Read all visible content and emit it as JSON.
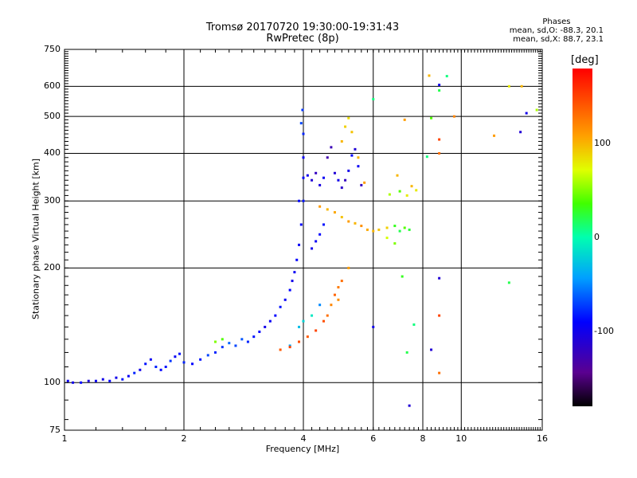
{
  "chart_data": {
    "type": "scatter",
    "title": "Tromsø 20170720 19:30:00-19:31:43",
    "subtitle": "RwPretec (8p)",
    "xlabel": "Frequency [MHz]",
    "ylabel": "Stationary phase Virtual Height [km]",
    "x_scale": "log",
    "y_scale": "log",
    "xlim": [
      1,
      16
    ],
    "ylim": [
      75,
      750
    ],
    "x_ticks": [
      "1",
      "2",
      "4",
      "6",
      "8",
      "10",
      "16"
    ],
    "x_tick_values": [
      1,
      2,
      4,
      6,
      8,
      10,
      16
    ],
    "y_ticks": [
      "75",
      "100",
      "200",
      "300",
      "400",
      "500",
      "600",
      "750"
    ],
    "y_tick_values": [
      75,
      100,
      200,
      300,
      400,
      500,
      600,
      750
    ],
    "grid": true,
    "phase_info": {
      "header": "Phases",
      "line_o": "mean, sd,O: -88.3, 20.1",
      "line_x": "mean, sd,X: 88.7, 23.1"
    },
    "colorbar": {
      "label": "[deg]",
      "range": [
        -180,
        180
      ],
      "ticks": [
        "100",
        "0",
        "-100"
      ],
      "tick_values": [
        100,
        0,
        -100
      ]
    },
    "series": [
      {
        "points": [
          [
            1.02,
            101,
            -95
          ],
          [
            1.05,
            100,
            -100
          ],
          [
            1.1,
            100,
            -90
          ],
          [
            1.15,
            101,
            -105
          ],
          [
            1.2,
            101,
            -95
          ],
          [
            1.25,
            102,
            -100
          ],
          [
            1.3,
            101,
            -90
          ],
          [
            1.35,
            103,
            -100
          ],
          [
            1.4,
            102,
            -85
          ],
          [
            1.45,
            104,
            -95
          ],
          [
            1.5,
            106,
            -80
          ],
          [
            1.55,
            108,
            -100
          ],
          [
            1.6,
            112,
            -85
          ],
          [
            1.65,
            115,
            -95
          ],
          [
            1.7,
            110,
            -80
          ],
          [
            1.75,
            108,
            -90
          ],
          [
            1.8,
            110,
            -85
          ],
          [
            1.85,
            114,
            -75
          ],
          [
            1.9,
            117,
            -95
          ],
          [
            1.95,
            119,
            -85
          ],
          [
            2.0,
            113,
            -80
          ],
          [
            2.1,
            112,
            -90
          ],
          [
            2.2,
            115,
            -85
          ],
          [
            2.3,
            118,
            -70
          ],
          [
            2.4,
            120,
            -80
          ],
          [
            2.5,
            124,
            -75
          ],
          [
            2.6,
            127,
            -60
          ],
          [
            2.7,
            125,
            -70
          ],
          [
            2.8,
            130,
            -65
          ],
          [
            2.9,
            128,
            -80
          ],
          [
            3.0,
            132,
            -85
          ],
          [
            3.1,
            136,
            -90
          ],
          [
            3.2,
            140,
            -100
          ],
          [
            3.3,
            145,
            -95
          ],
          [
            3.4,
            150,
            -90
          ],
          [
            3.5,
            158,
            -85
          ],
          [
            3.6,
            165,
            -95
          ],
          [
            3.7,
            175,
            -90
          ],
          [
            3.75,
            185,
            -100
          ],
          [
            3.8,
            195,
            -95
          ],
          [
            3.85,
            210,
            -90
          ],
          [
            3.9,
            230,
            -95
          ],
          [
            3.95,
            260,
            -90
          ],
          [
            4.0,
            300,
            -85
          ],
          [
            4.0,
            345,
            -90
          ],
          [
            4.0,
            390,
            -95
          ],
          [
            4.0,
            450,
            -80
          ],
          [
            3.98,
            520,
            -75
          ],
          [
            3.95,
            480,
            -70
          ],
          [
            3.9,
            300,
            -90
          ],
          [
            4.1,
            350,
            -100
          ],
          [
            4.2,
            340,
            -110
          ],
          [
            4.3,
            355,
            -120
          ],
          [
            4.4,
            330,
            -105
          ],
          [
            4.5,
            345,
            -95
          ],
          [
            4.6,
            390,
            -130
          ],
          [
            4.7,
            415,
            -125
          ],
          [
            4.8,
            355,
            -110
          ],
          [
            4.9,
            340,
            -100
          ],
          [
            5.0,
            325,
            -115
          ],
          [
            5.1,
            340,
            -120
          ],
          [
            5.2,
            360,
            -100
          ],
          [
            5.3,
            395,
            -90
          ],
          [
            5.4,
            410,
            -110
          ],
          [
            5.5,
            370,
            -95
          ],
          [
            5.6,
            330,
            -120
          ],
          [
            4.2,
            225,
            -100
          ],
          [
            4.3,
            235,
            -95
          ],
          [
            4.4,
            245,
            -90
          ],
          [
            4.5,
            260,
            -85
          ],
          [
            3.9,
            140,
            -30
          ],
          [
            4.0,
            145,
            -20
          ],
          [
            4.2,
            150,
            -10
          ],
          [
            4.4,
            160,
            -50
          ],
          [
            3.7,
            125,
            -40
          ]
        ]
      },
      {
        "points": [
          [
            2.4,
            128,
            50
          ],
          [
            2.5,
            130,
            40
          ],
          [
            3.5,
            122,
            140
          ],
          [
            3.7,
            124,
            150
          ],
          [
            3.9,
            128,
            145
          ],
          [
            4.1,
            132,
            140
          ],
          [
            4.3,
            137,
            150
          ],
          [
            4.5,
            145,
            145
          ],
          [
            4.6,
            150,
            130
          ],
          [
            4.7,
            160,
            120
          ],
          [
            4.8,
            170,
            135
          ],
          [
            4.9,
            178,
            125
          ],
          [
            5.0,
            185,
            130
          ],
          [
            4.4,
            290,
            110
          ],
          [
            4.6,
            285,
            100
          ],
          [
            4.8,
            280,
            105
          ],
          [
            5.0,
            272,
            95
          ],
          [
            5.2,
            265,
            110
          ],
          [
            5.4,
            262,
            100
          ],
          [
            5.6,
            258,
            115
          ],
          [
            5.8,
            252,
            105
          ],
          [
            6.0,
            250,
            100
          ],
          [
            6.2,
            252,
            95
          ],
          [
            6.5,
            255,
            90
          ],
          [
            6.8,
            258,
            30
          ],
          [
            7.0,
            250,
            20
          ],
          [
            7.2,
            255,
            40
          ],
          [
            7.4,
            252,
            25
          ],
          [
            6.6,
            312,
            60
          ],
          [
            7.0,
            318,
            40
          ],
          [
            5.0,
            430,
            100
          ],
          [
            5.1,
            470,
            90
          ],
          [
            5.2,
            495,
            85
          ],
          [
            5.3,
            455,
            95
          ],
          [
            5.5,
            390,
            100
          ],
          [
            5.7,
            335,
            110
          ],
          [
            6.9,
            350,
            100
          ],
          [
            7.3,
            310,
            80
          ],
          [
            6.5,
            240,
            70
          ],
          [
            6.8,
            232,
            50
          ],
          [
            5.2,
            200,
            110
          ],
          [
            4.9,
            165,
            115
          ]
        ]
      },
      {
        "points": [
          [
            8.3,
            640,
            100
          ],
          [
            8.8,
            605,
            -100
          ],
          [
            8.8,
            585,
            20
          ],
          [
            9.6,
            500,
            120
          ],
          [
            8.4,
            495,
            40
          ],
          [
            8.8,
            435,
            150
          ],
          [
            8.8,
            400,
            130
          ],
          [
            7.2,
            490,
            110
          ],
          [
            7.5,
            328,
            100
          ],
          [
            7.7,
            320,
            80
          ],
          [
            8.2,
            392,
            10
          ],
          [
            13.2,
            600,
            80
          ],
          [
            14.2,
            600,
            100
          ],
          [
            15.5,
            520,
            60
          ],
          [
            12.1,
            445,
            110
          ],
          [
            14.1,
            455,
            -110
          ],
          [
            14.6,
            510,
            -100
          ],
          [
            9.2,
            638,
            10
          ],
          [
            6.0,
            555,
            10
          ],
          [
            8.8,
            188,
            -110
          ],
          [
            8.8,
            150,
            150
          ],
          [
            7.6,
            142,
            10
          ],
          [
            8.4,
            122,
            -110
          ],
          [
            8.8,
            106,
            130
          ],
          [
            7.4,
            87,
            -110
          ],
          [
            7.3,
            120,
            20
          ],
          [
            6.0,
            140,
            -100
          ],
          [
            13.2,
            183,
            20
          ],
          [
            7.1,
            190,
            30
          ]
        ]
      }
    ]
  }
}
